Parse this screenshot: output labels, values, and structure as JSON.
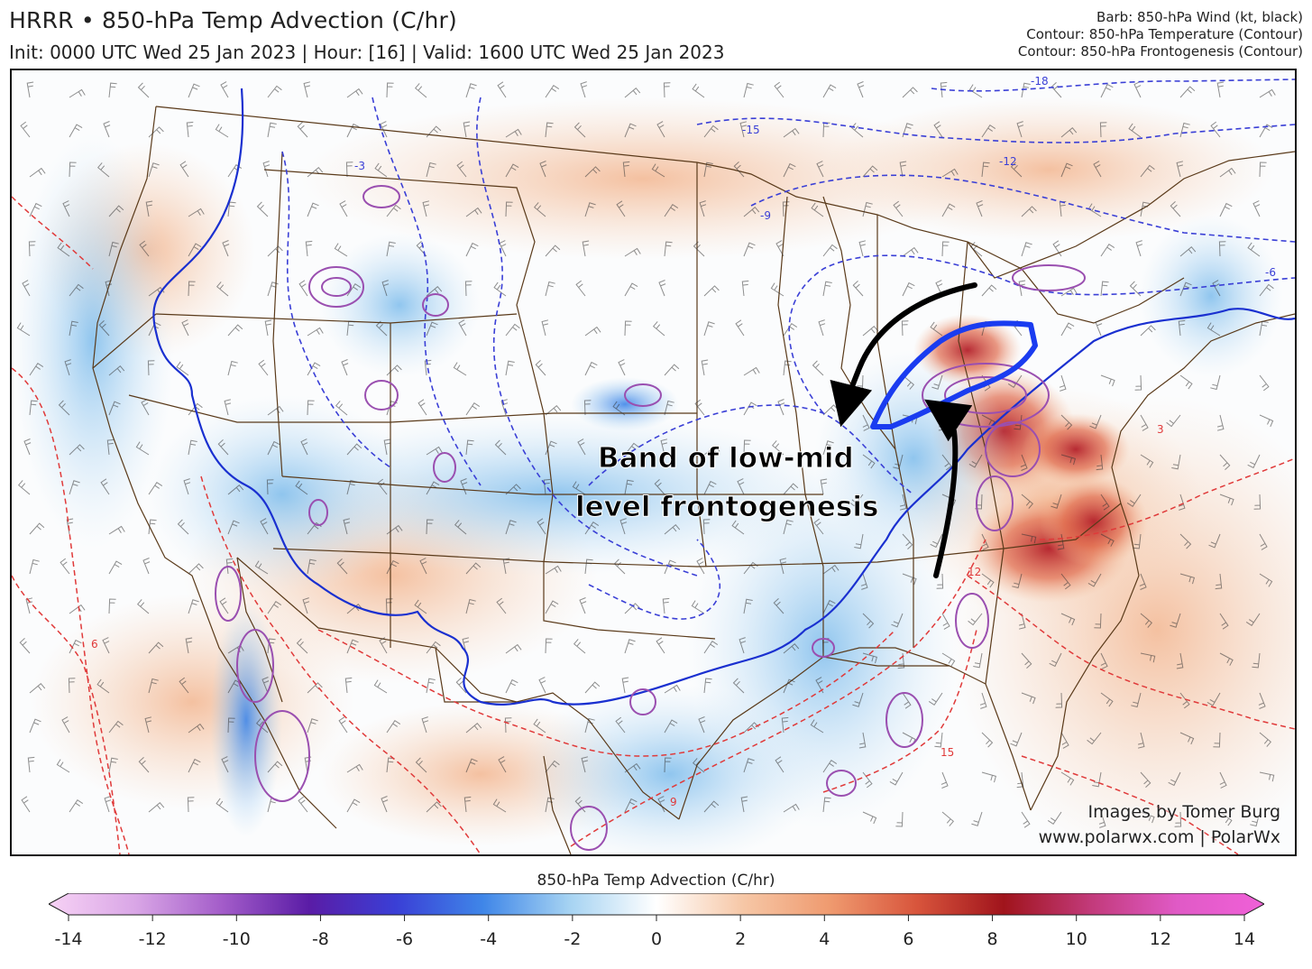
{
  "header": {
    "title": "HRRR • 850-hPa Temp Advection (C/hr)",
    "subtitle": "Init: 0000 UTC Wed 25 Jan 2023 | Hour: [16] | Valid: 1600 UTC Wed 25 Jan 2023"
  },
  "legend": {
    "line1": "Barb: 850-hPa Wind (kt, black)",
    "line2": "Contour: 850-hPa Temperature (Contour)",
    "line3": "Contour: 850-hPa Frontogenesis (Contour)"
  },
  "annotation": {
    "line1": "Band of low-mid",
    "line2": "level frontogenesis",
    "outline_color": "#1a3cf0",
    "arrow_color": "#000000"
  },
  "credits": {
    "author": "Images by Tomer Burg",
    "site": "www.polarwx.com | PolarWx"
  },
  "temperature_contour_labels": [
    "-18",
    "-15",
    "-12",
    "-9",
    "-6",
    "-3",
    "3",
    "6",
    "9",
    "12",
    "15"
  ],
  "colorbar": {
    "title": "850-hPa Temp Advection (C/hr)",
    "ticks": [
      "-14",
      "-12",
      "-10",
      "-8",
      "-6",
      "-4",
      "-2",
      "0",
      "2",
      "4",
      "6",
      "8",
      "10",
      "12",
      "14"
    ],
    "range": [
      -14,
      14
    ],
    "colors": [
      "#f7d2f5",
      "#d9a6e6",
      "#a35cc9",
      "#5a1ca6",
      "#3a3fd6",
      "#3f86e8",
      "#a6d3f2",
      "#ffffff",
      "#f6c7a6",
      "#ef9a6f",
      "#d8553c",
      "#a0141c",
      "#c23a7a",
      "#e05ac6",
      "#f060d8"
    ]
  },
  "colors": {
    "warm_advection": "#ef9a6f",
    "cold_advection": "#8cc4ec",
    "cold_contour": "#3a3fd6",
    "warm_contour": "#e03a3a",
    "frontogenesis": "#9a4fb0",
    "borders": "#5a3a1a"
  }
}
